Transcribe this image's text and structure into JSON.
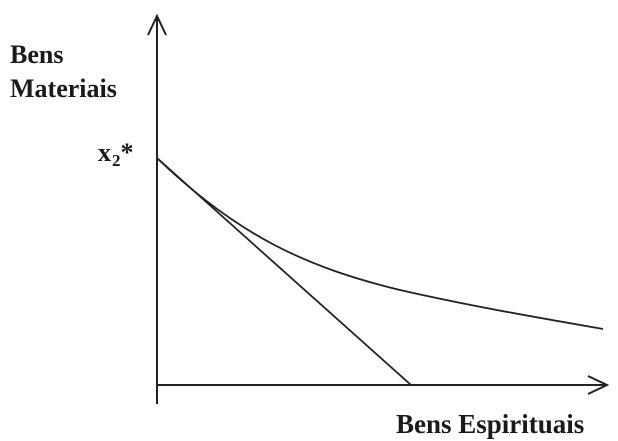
{
  "diagram": {
    "y_axis_label": [
      "Bens",
      "Materiais"
    ],
    "x_axis_label": "Bens Espirituais",
    "intercept_label": {
      "base": "x",
      "subscript": "2",
      "suffix": "*"
    },
    "stroke_color": "#222222",
    "label_color": "#1a1a1a"
  }
}
